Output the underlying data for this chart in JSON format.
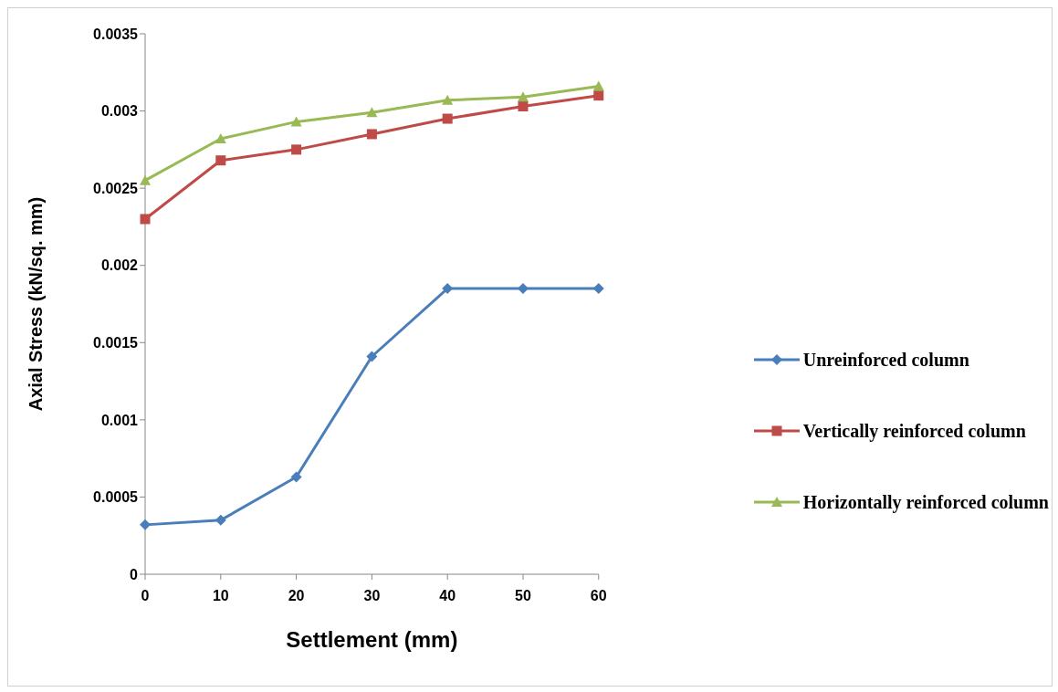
{
  "chart_data": {
    "type": "line",
    "xlabel": "Settlement (mm)",
    "ylabel": "Axial Stress (kN/sq. mm)",
    "categories": [
      "0",
      "10",
      "20",
      "30",
      "40",
      "50",
      "60"
    ],
    "series": [
      {
        "name": "Unreinforced column",
        "color": "#4a7ebb",
        "marker": "diamond",
        "values": [
          0.00032,
          0.00035,
          0.00063,
          0.00141,
          0.00185,
          0.00185,
          0.00185
        ]
      },
      {
        "name": "Vertically reinforced column",
        "color": "#be4b48",
        "marker": "square",
        "values": [
          0.0023,
          0.00268,
          0.00275,
          0.00285,
          0.00295,
          0.00303,
          0.0031
        ]
      },
      {
        "name": "Horizontally reinforced column",
        "color": "#98b954",
        "marker": "triangle",
        "values": [
          0.00255,
          0.00282,
          0.00293,
          0.00299,
          0.00307,
          0.00309,
          0.00316
        ]
      }
    ],
    "ylim": [
      0,
      0.0035
    ],
    "yticks": [
      0,
      0.0005,
      0.001,
      0.0015,
      0.002,
      0.0025,
      0.003,
      0.0035
    ],
    "grid": false,
    "legend": "right",
    "line_style": "solid"
  }
}
